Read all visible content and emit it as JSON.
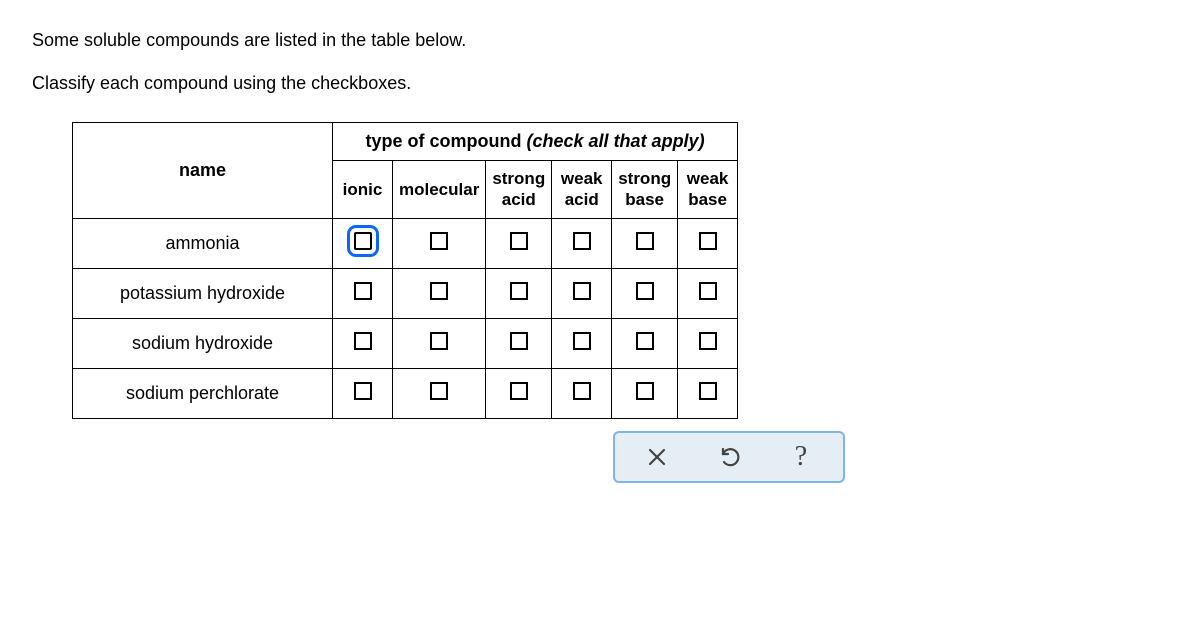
{
  "instructions": {
    "line1": "Some soluble compounds are listed in the table below.",
    "line2": "Classify each compound using the checkboxes."
  },
  "table": {
    "name_header": "name",
    "super_header_plain": "type of compound ",
    "super_header_italic": "(check all that apply)",
    "columns": [
      {
        "id": "ionic",
        "label_line1": "ionic",
        "label_line2": ""
      },
      {
        "id": "molecular",
        "label_line1": "molecular",
        "label_line2": ""
      },
      {
        "id": "strong_acid",
        "label_line1": "strong",
        "label_line2": "acid"
      },
      {
        "id": "weak_acid",
        "label_line1": "weak",
        "label_line2": "acid"
      },
      {
        "id": "strong_base",
        "label_line1": "strong",
        "label_line2": "base"
      },
      {
        "id": "weak_base",
        "label_line1": "weak",
        "label_line2": "base"
      }
    ],
    "rows": [
      {
        "name": "ammonia",
        "focused_col": 0
      },
      {
        "name": "potassium hydroxide",
        "focused_col": -1
      },
      {
        "name": "sodium hydroxide",
        "focused_col": -1
      },
      {
        "name": "sodium perchlorate",
        "focused_col": -1
      }
    ]
  },
  "toolbar": {
    "clear_label": "clear",
    "undo_label": "undo",
    "help_label": "?"
  },
  "style": {
    "focus_color": "#0a66ff",
    "border_color": "#000000",
    "toolbar_bg": "#e6eef5",
    "toolbar_border": "#7fb5e6"
  }
}
